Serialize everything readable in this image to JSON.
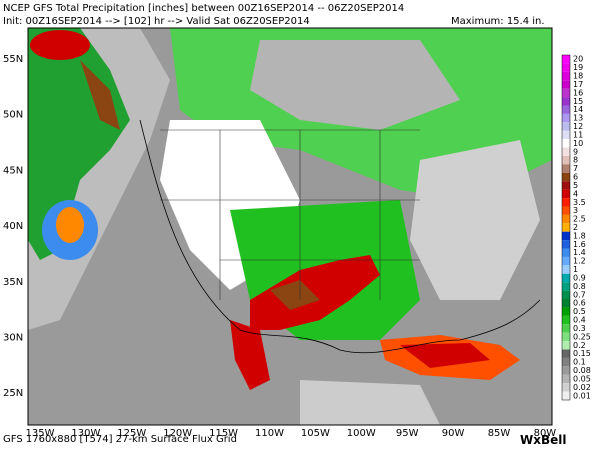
{
  "header": {
    "line1": "NCEP GFS Total Precipitation [inches] between 00Z16SEP2014 -- 06Z20SEP2014",
    "line2": "Init: 00Z16SEP2014 --> [102] hr --> Valid Sat 06Z20SEP2014",
    "maximum": "Maximum:  15.4 in."
  },
  "map": {
    "lat_labels": [
      "55N",
      "50N",
      "45N",
      "40N",
      "35N",
      "30N",
      "25N"
    ],
    "lon_labels": [
      "135W",
      "130W",
      "125W",
      "120W",
      "115W",
      "110W",
      "105W",
      "100W",
      "95W",
      "90W",
      "85W",
      "80W"
    ]
  },
  "colorbar": [
    {
      "label": "20",
      "color": "#ff00ff"
    },
    {
      "label": "19",
      "color": "#ee00ee"
    },
    {
      "label": "18",
      "color": "#dd00dd"
    },
    {
      "label": "17",
      "color": "#cc00cc"
    },
    {
      "label": "16",
      "color": "#bb33cc"
    },
    {
      "label": "15",
      "color": "#9933cc"
    },
    {
      "label": "14",
      "color": "#9966dd"
    },
    {
      "label": "13",
      "color": "#aa99ee"
    },
    {
      "label": "12",
      "color": "#bbbbee"
    },
    {
      "label": "11",
      "color": "#ddddf5"
    },
    {
      "label": "10",
      "color": "#ffffff"
    },
    {
      "label": "9",
      "color": "#f2e0e0"
    },
    {
      "label": "8",
      "color": "#e0c0b8"
    },
    {
      "label": "7",
      "color": "#b08070"
    },
    {
      "label": "6",
      "color": "#8b4513"
    },
    {
      "label": "5",
      "color": "#a01010"
    },
    {
      "label": "4",
      "color": "#d00000"
    },
    {
      "label": "3.5",
      "color": "#ff2000"
    },
    {
      "label": "3",
      "color": "#ff5000"
    },
    {
      "label": "2.5",
      "color": "#ff8800"
    },
    {
      "label": "2",
      "color": "#ffb000"
    },
    {
      "label": "1.8",
      "color": "#0033cc"
    },
    {
      "label": "1.6",
      "color": "#1e60e0"
    },
    {
      "label": "1.4",
      "color": "#3c8cf0"
    },
    {
      "label": "1.2",
      "color": "#66aaff"
    },
    {
      "label": "1",
      "color": "#99ccff"
    },
    {
      "label": "0.9",
      "color": "#00aaaa"
    },
    {
      "label": "0.8",
      "color": "#00a080"
    },
    {
      "label": "0.7",
      "color": "#009050"
    },
    {
      "label": "0.6",
      "color": "#008030"
    },
    {
      "label": "0.5",
      "color": "#00a000"
    },
    {
      "label": "0.4",
      "color": "#20c020"
    },
    {
      "label": "0.3",
      "color": "#50d050"
    },
    {
      "label": "0.25",
      "color": "#80e080"
    },
    {
      "label": "0.2",
      "color": "#b0eeb0"
    },
    {
      "label": "0.15",
      "color": "#666666"
    },
    {
      "label": "0.1",
      "color": "#808080"
    },
    {
      "label": "0.08",
      "color": "#9a9a9a"
    },
    {
      "label": "0.05",
      "color": "#b4b4b4"
    },
    {
      "label": "0.02",
      "color": "#d0d0d0"
    },
    {
      "label": "0.01",
      "color": "#eeeeee"
    }
  ],
  "footer": {
    "grid": "GFS 1760x880 [T574] 27-km Surface Flux Grid",
    "brand": "WxBell"
  }
}
